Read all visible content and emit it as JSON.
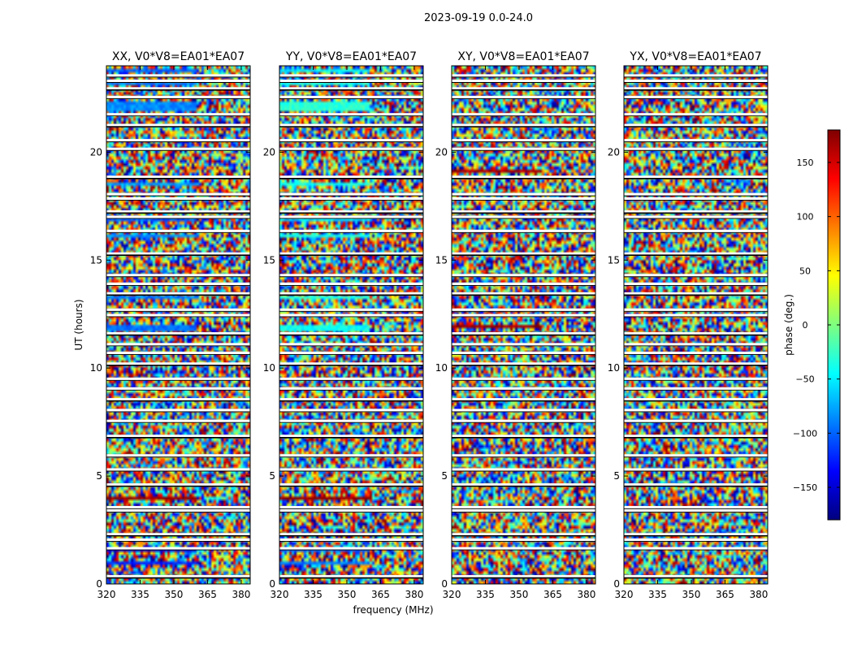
{
  "figure": {
    "suptitle": "2023-09-19 0.0-24.0",
    "xlabel": "frequency (MHz)",
    "ylabel": "UT (hours)"
  },
  "chart_data": {
    "type": "heatmap",
    "x_range": [
      320,
      384
    ],
    "y_range": [
      0,
      24
    ],
    "xticks": [
      320,
      335,
      350,
      365,
      380
    ],
    "yticks": [
      0,
      5,
      10,
      15,
      20
    ],
    "panels": [
      {
        "title": "XX, V0*V8=EA01*EA07",
        "bands": [
          [
            0.95,
            1.05,
            -120
          ],
          [
            1.45,
            1.6,
            -150
          ],
          [
            3.85,
            4.1,
            175
          ],
          [
            11.75,
            12.05,
            -95
          ],
          [
            13.25,
            13.35,
            -90
          ],
          [
            16.05,
            16.2,
            -85
          ],
          [
            16.75,
            16.9,
            -100
          ],
          [
            18.5,
            18.65,
            -80
          ],
          [
            21.9,
            22.3,
            -85
          ],
          [
            23.1,
            23.25,
            -90
          ],
          [
            23.75,
            23.9,
            -100
          ]
        ],
        "band_fraction": [
          0.6,
          0.8,
          1.0
        ]
      },
      {
        "title": "YY, V0*V8=EA01*EA07",
        "bands": [
          [
            0.95,
            1.05,
            -90
          ],
          [
            1.45,
            1.6,
            -100
          ],
          [
            3.85,
            4.1,
            175
          ],
          [
            11.75,
            12.05,
            -40
          ],
          [
            13.25,
            13.35,
            -30
          ],
          [
            16.05,
            16.2,
            -40
          ],
          [
            16.75,
            16.9,
            -60
          ],
          [
            18.5,
            18.65,
            -40
          ],
          [
            21.9,
            22.3,
            -30
          ],
          [
            23.1,
            23.25,
            -40
          ],
          [
            23.75,
            23.9,
            -50
          ]
        ],
        "band_fraction": [
          0.6,
          0.8,
          1.0
        ]
      },
      {
        "title": "XY, V0*V8=EA01*EA07",
        "bands": [
          [
            11.8,
            12.0,
            170
          ],
          [
            19.0,
            19.15,
            165
          ]
        ],
        "band_fraction": [
          0.4
        ]
      },
      {
        "title": "YX, V0*V8=EA01*EA07",
        "bands": [],
        "band_fraction": []
      }
    ],
    "gap_rows": [
      0.35,
      1.65,
      2.05,
      2.3,
      3.4,
      3.55,
      4.6,
      5.3,
      5.95,
      6.85,
      7.55,
      8.05,
      8.55,
      9.05,
      9.5,
      10.2,
      10.7,
      11.1,
      11.6,
      12.45,
      12.7,
      13.45,
      13.9,
      14.3,
      15.3,
      16.35,
      17.0,
      17.25,
      17.85,
      18.05,
      18.85,
      20.15,
      20.55,
      21.25,
      21.75,
      22.55,
      22.95,
      23.3,
      23.55
    ],
    "colorbar": {
      "label": "phase (deg.)",
      "range": [
        -180,
        180
      ],
      "ticks": [
        -150,
        -100,
        -50,
        0,
        50,
        100,
        150
      ],
      "tick_labels": [
        "−150",
        "−100",
        "−50",
        "0",
        "50",
        "100",
        "150"
      ],
      "colormap": "jet",
      "colors": [
        "#00007f",
        "#0000ff",
        "#007fff",
        "#00ffff",
        "#7fff7f",
        "#ffff00",
        "#ff7f00",
        "#ff0000",
        "#7f0000"
      ]
    }
  }
}
